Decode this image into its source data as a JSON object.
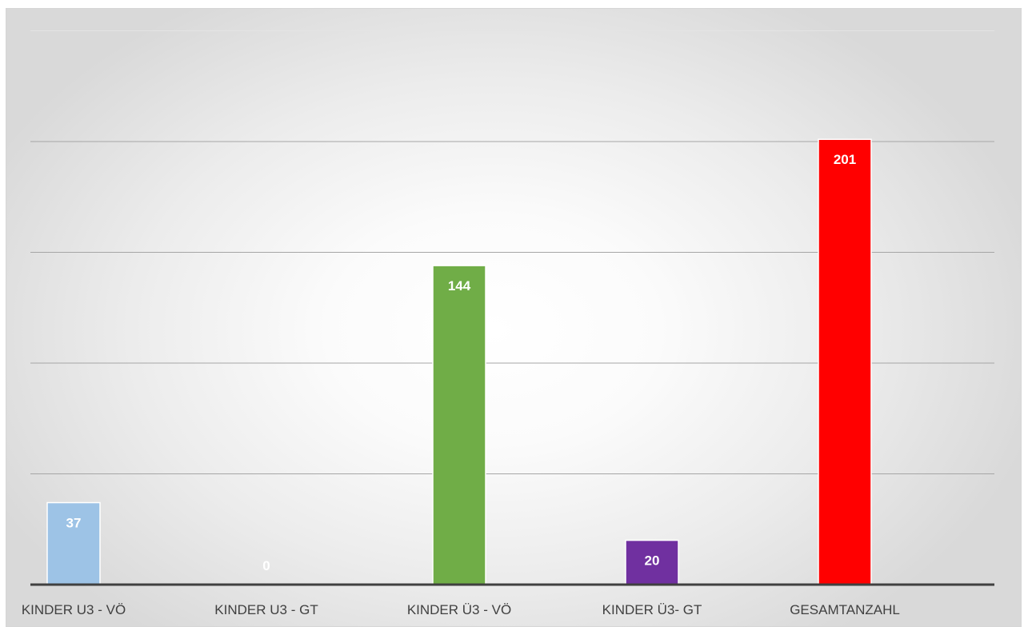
{
  "chart_data": {
    "type": "bar",
    "categories": [
      "KINDER U3 - VÖ",
      "KINDER U3 - GT",
      "KINDER Ü3 - VÖ",
      "KINDER Ü3- GT",
      "GESAMTANZAHL"
    ],
    "values": [
      37,
      0,
      144,
      20,
      201
    ],
    "colors": [
      "#9DC3E6",
      "#FFFFFF",
      "#70AD47",
      "#7030A0",
      "#FF0000"
    ],
    "data_labels": [
      "37",
      "0",
      "144",
      "20",
      "201"
    ],
    "ylim": [
      0,
      250
    ],
    "grid": true,
    "title": "",
    "xlabel": "",
    "ylabel": ""
  }
}
